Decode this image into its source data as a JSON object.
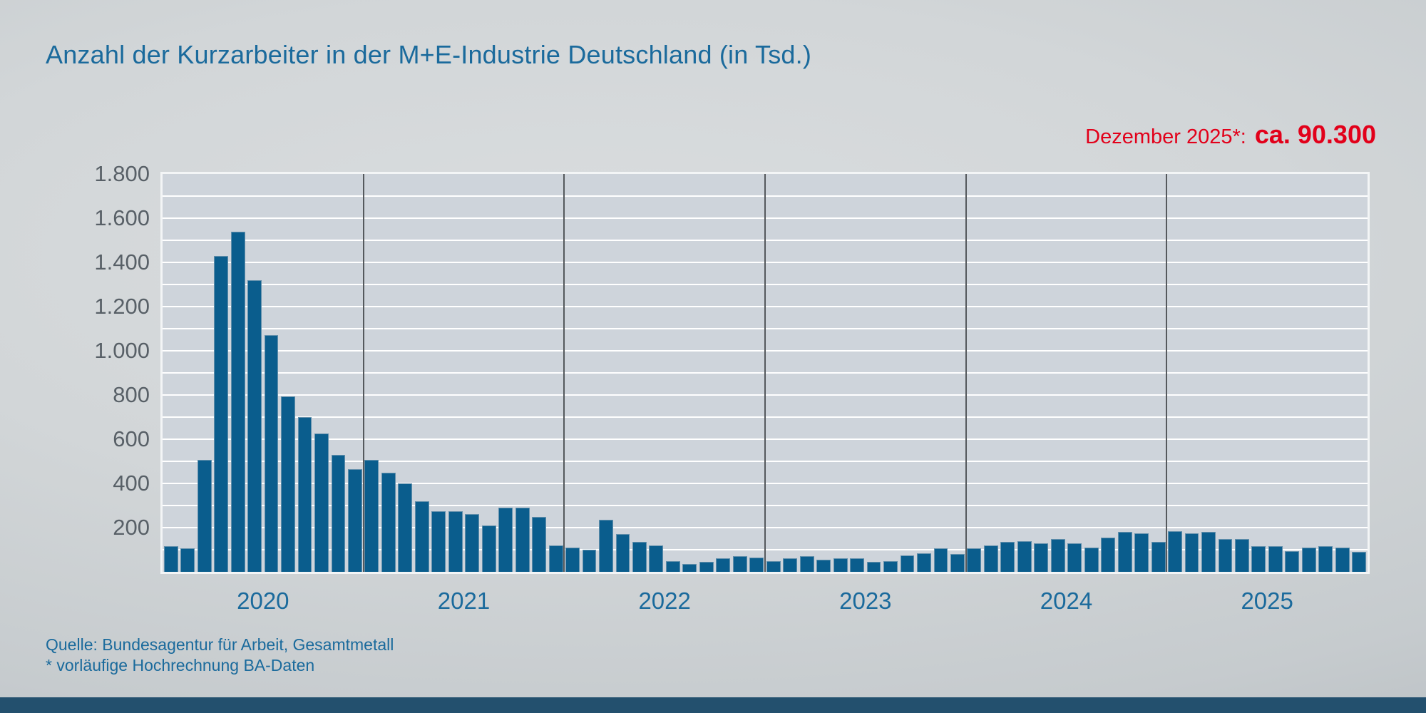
{
  "title": "Anzahl der Kurzarbeiter in der M+E-Industrie Deutschland (in Tsd.)",
  "annotation": {
    "label": "Dezember 2025*:",
    "value": "ca. 90.300"
  },
  "source": {
    "line1": "Quelle: Bundesagentur für Arbeit, Gesamtmetall",
    "line2": "* vorläufige Hochrechnung BA-Daten"
  },
  "colors": {
    "bar": "#0a5d8d",
    "title_blue": "#1a6a9c",
    "axis_label_gray": "#586067",
    "plot_background": "#ced4db",
    "gridline_white": "#ffffff",
    "year_separator": "#55595d",
    "accent_red": "#e2001a",
    "footer_bar": "#23506e"
  },
  "chart_data": {
    "type": "bar",
    "title": "Anzahl der Kurzarbeiter in der M+E-Industrie Deutschland (in Tsd.)",
    "unit": "Tsd.",
    "ylim": [
      0,
      1800
    ],
    "gridline_step": 100,
    "grid": true,
    "legend": false,
    "yticks": [
      {
        "label": "1.800",
        "value": 1800
      },
      {
        "label": "1.600",
        "value": 1600
      },
      {
        "label": "1.400",
        "value": 1400
      },
      {
        "label": "1.200",
        "value": 1200
      },
      {
        "label": "1.000",
        "value": 1000
      },
      {
        "label": "800",
        "value": 800
      },
      {
        "label": "600",
        "value": 600
      },
      {
        "label": "400",
        "value": 400
      },
      {
        "label": "200",
        "value": 200
      }
    ],
    "categories": [
      "2020",
      "2021",
      "2022",
      "2023",
      "2024",
      "2025"
    ],
    "months_per_year": 12,
    "series": [
      {
        "name": "2020",
        "values": [
          115,
          105,
          505,
          1430,
          1540,
          1320,
          1070,
          795,
          700,
          625,
          530,
          465
        ]
      },
      {
        "name": "2021",
        "values": [
          505,
          450,
          400,
          320,
          275,
          275,
          260,
          210,
          290,
          290,
          250,
          120
        ]
      },
      {
        "name": "2022",
        "values": [
          110,
          100,
          235,
          170,
          135,
          120,
          50,
          35,
          45,
          60,
          70,
          65
        ]
      },
      {
        "name": "2023",
        "values": [
          50,
          60,
          70,
          55,
          60,
          60,
          45,
          50,
          75,
          85,
          105,
          80
        ]
      },
      {
        "name": "2024",
        "values": [
          105,
          120,
          135,
          140,
          130,
          150,
          130,
          110,
          155,
          180,
          175,
          135
        ]
      },
      {
        "name": "2025",
        "values": [
          185,
          175,
          180,
          150,
          150,
          115,
          115,
          95,
          110,
          115,
          110,
          90
        ]
      }
    ],
    "last_value_annotation": "Dezember 2025*: ca. 90.300"
  }
}
